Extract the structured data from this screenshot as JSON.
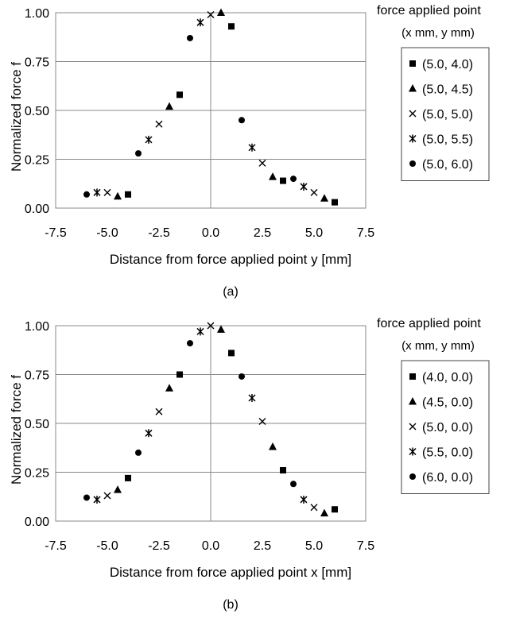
{
  "chart_data": [
    {
      "type": "scatter",
      "panel_label": "(a)",
      "xlabel": "Distance from force applied point y [mm]",
      "ylabel": "Normalized force f",
      "xlim": [
        -7.5,
        7.5
      ],
      "ylim": [
        0,
        1.0
      ],
      "xticks": [
        "-7.5",
        "-5.0",
        "-2.5",
        "0.0",
        "2.5",
        "5.0",
        "7.5"
      ],
      "yticks": [
        "0.00",
        "0.25",
        "0.50",
        "0.75",
        "1.00"
      ],
      "grid": "horizontal",
      "legend_position": "right",
      "legend_title": [
        "force applied point",
        "(x mm, y mm)"
      ],
      "series": [
        {
          "name": "(5.0, 4.0)",
          "marker": "square",
          "x": [
            -4.0,
            -1.5,
            1.0,
            3.5,
            6.0
          ],
          "y": [
            0.07,
            0.58,
            0.93,
            0.14,
            0.03
          ]
        },
        {
          "name": "(5.0, 4.5)",
          "marker": "triangle",
          "x": [
            -4.5,
            -2.0,
            0.5,
            3.0,
            5.5
          ],
          "y": [
            0.06,
            0.52,
            1.0,
            0.16,
            0.05
          ]
        },
        {
          "name": "(5.0, 5.0)",
          "marker": "cross",
          "x": [
            -5.0,
            -2.5,
            0.0,
            2.5,
            5.0
          ],
          "y": [
            0.08,
            0.43,
            0.99,
            0.23,
            0.08
          ]
        },
        {
          "name": "(5.0, 5.5)",
          "marker": "asterisk",
          "x": [
            -5.5,
            -3.0,
            -0.5,
            2.0,
            4.5
          ],
          "y": [
            0.08,
            0.35,
            0.95,
            0.31,
            0.11
          ]
        },
        {
          "name": "(5.0, 6.0)",
          "marker": "circle",
          "x": [
            -6.0,
            -3.5,
            -1.0,
            1.5,
            4.0
          ],
          "y": [
            0.07,
            0.28,
            0.87,
            0.45,
            0.15
          ]
        }
      ]
    },
    {
      "type": "scatter",
      "panel_label": "(b)",
      "xlabel": "Distance from force applied point x [mm]",
      "ylabel": "Normalized force f",
      "xlim": [
        -7.5,
        7.5
      ],
      "ylim": [
        0,
        1.0
      ],
      "xticks": [
        "-7.5",
        "-5.0",
        "-2.5",
        "0.0",
        "2.5",
        "5.0",
        "7.5"
      ],
      "yticks": [
        "0.00",
        "0.25",
        "0.50",
        "0.75",
        "1.00"
      ],
      "grid": "horizontal",
      "legend_position": "right",
      "legend_title": [
        "force applied point",
        "(x mm, y mm)"
      ],
      "series": [
        {
          "name": "(4.0, 0.0)",
          "marker": "square",
          "x": [
            -4.0,
            -1.5,
            1.0,
            3.5,
            6.0
          ],
          "y": [
            0.22,
            0.75,
            0.86,
            0.26,
            0.06
          ]
        },
        {
          "name": "(4.5, 0.0)",
          "marker": "triangle",
          "x": [
            -4.5,
            -2.0,
            0.5,
            3.0,
            5.5
          ],
          "y": [
            0.16,
            0.68,
            0.98,
            0.38,
            0.04
          ]
        },
        {
          "name": "(5.0, 0.0)",
          "marker": "cross",
          "x": [
            -5.0,
            -2.5,
            0.0,
            2.5,
            5.0
          ],
          "y": [
            0.13,
            0.56,
            1.0,
            0.51,
            0.07
          ]
        },
        {
          "name": "(5.5, 0.0)",
          "marker": "asterisk",
          "x": [
            -5.5,
            -3.0,
            -0.5,
            2.0,
            4.5
          ],
          "y": [
            0.11,
            0.45,
            0.97,
            0.63,
            0.11
          ]
        },
        {
          "name": "(6.0, 0.0)",
          "marker": "circle",
          "x": [
            -6.0,
            -3.5,
            -1.0,
            1.5,
            4.0
          ],
          "y": [
            0.12,
            0.35,
            0.91,
            0.74,
            0.19
          ]
        }
      ]
    }
  ]
}
